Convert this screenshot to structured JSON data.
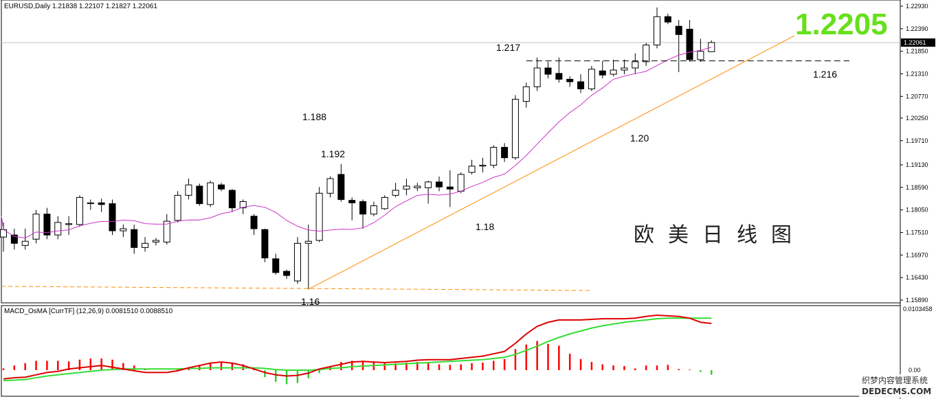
{
  "header": {
    "symbol": "EURUSD,Daily",
    "ohlc": "1.21838 1.22107 1.21827 1.22061"
  },
  "price_axis": {
    "ticks": [
      "1.22930",
      "1.22390",
      "1.21850",
      "1.21310",
      "1.20770",
      "1.20250",
      "1.19710",
      "1.19130",
      "1.18590",
      "1.18050",
      "1.17510",
      "1.16970",
      "1.16430",
      "1.15890"
    ],
    "current_price_label": "1.22061"
  },
  "annotations": {
    "big_price": "1.2205",
    "level_1217": "1.217",
    "level_1216": "1.216",
    "level_1188": "1.188",
    "level_1192": "1.192",
    "level_118": "1.18",
    "level_120": "1.20",
    "level_116": "1.16",
    "chinese_title": "欧美日线图"
  },
  "macd_panel": {
    "title": "MACD_OsMA [CurrTF] (12,26,9) 0.0081510 0.0088510",
    "top_tick": "0.0103458",
    "zero_tick": "0.00",
    "bottom_tick": "-0.0057..."
  },
  "watermark": {
    "line1": "织梦内容管理系统",
    "line2": "DEDECMS.COM"
  },
  "colors": {
    "bull_body": "#ffffff",
    "bear_body": "#000000",
    "ma_line": "#cc33cc",
    "trend_line": "#ff8c00",
    "histogram": "#ff0000",
    "histogram_negative": "#33cc33",
    "macd_fast": "#dd0000",
    "macd_signal": "#33dd33",
    "big_price": "#66e01a"
  },
  "chart_data": [
    {
      "type": "candlestick",
      "title": "EURUSD,Daily",
      "ylim": [
        1.1589,
        1.2293
      ],
      "candles": [
        {
          "o": 1.174,
          "h": 1.1775,
          "l": 1.1705,
          "c": 1.1758
        },
        {
          "o": 1.1745,
          "h": 1.176,
          "l": 1.171,
          "c": 1.1725
        },
        {
          "o": 1.172,
          "h": 1.176,
          "l": 1.171,
          "c": 1.173
        },
        {
          "o": 1.1735,
          "h": 1.1805,
          "l": 1.1725,
          "c": 1.1795
        },
        {
          "o": 1.1795,
          "h": 1.181,
          "l": 1.1735,
          "c": 1.1745
        },
        {
          "o": 1.1745,
          "h": 1.179,
          "l": 1.1735,
          "c": 1.1775
        },
        {
          "o": 1.177,
          "h": 1.179,
          "l": 1.1745,
          "c": 1.1772
        },
        {
          "o": 1.177,
          "h": 1.184,
          "l": 1.1765,
          "c": 1.1835
        },
        {
          "o": 1.182,
          "h": 1.183,
          "l": 1.1805,
          "c": 1.1822
        },
        {
          "o": 1.1822,
          "h": 1.1832,
          "l": 1.18,
          "c": 1.1818
        },
        {
          "o": 1.182,
          "h": 1.183,
          "l": 1.1745,
          "c": 1.1755
        },
        {
          "o": 1.1755,
          "h": 1.177,
          "l": 1.174,
          "c": 1.176
        },
        {
          "o": 1.1758,
          "h": 1.177,
          "l": 1.17,
          "c": 1.1715
        },
        {
          "o": 1.1715,
          "h": 1.174,
          "l": 1.1705,
          "c": 1.1725
        },
        {
          "o": 1.1728,
          "h": 1.1738,
          "l": 1.172,
          "c": 1.1732
        },
        {
          "o": 1.1728,
          "h": 1.1795,
          "l": 1.1722,
          "c": 1.1778
        },
        {
          "o": 1.178,
          "h": 1.185,
          "l": 1.1775,
          "c": 1.184
        },
        {
          "o": 1.184,
          "h": 1.188,
          "l": 1.183,
          "c": 1.1865
        },
        {
          "o": 1.1862,
          "h": 1.1868,
          "l": 1.1815,
          "c": 1.182
        },
        {
          "o": 1.1818,
          "h": 1.1875,
          "l": 1.1812,
          "c": 1.187
        },
        {
          "o": 1.1865,
          "h": 1.187,
          "l": 1.185,
          "c": 1.1855
        },
        {
          "o": 1.1852,
          "h": 1.1855,
          "l": 1.18,
          "c": 1.181
        },
        {
          "o": 1.181,
          "h": 1.183,
          "l": 1.1795,
          "c": 1.1825
        },
        {
          "o": 1.179,
          "h": 1.1795,
          "l": 1.1745,
          "c": 1.176
        },
        {
          "o": 1.1758,
          "h": 1.176,
          "l": 1.168,
          "c": 1.169
        },
        {
          "o": 1.1688,
          "h": 1.17,
          "l": 1.165,
          "c": 1.1655
        },
        {
          "o": 1.1658,
          "h": 1.1662,
          "l": 1.164,
          "c": 1.1648
        },
        {
          "o": 1.1635,
          "h": 1.174,
          "l": 1.1628,
          "c": 1.1725
        },
        {
          "o": 1.1725,
          "h": 1.177,
          "l": 1.1615,
          "c": 1.173
        },
        {
          "o": 1.1732,
          "h": 1.186,
          "l": 1.1728,
          "c": 1.1845
        },
        {
          "o": 1.1845,
          "h": 1.1885,
          "l": 1.1835,
          "c": 1.188
        },
        {
          "o": 1.189,
          "h": 1.1915,
          "l": 1.1825,
          "c": 1.183
        },
        {
          "o": 1.1828,
          "h": 1.1835,
          "l": 1.178,
          "c": 1.1822
        },
        {
          "o": 1.1825,
          "h": 1.183,
          "l": 1.176,
          "c": 1.1795
        },
        {
          "o": 1.1795,
          "h": 1.1825,
          "l": 1.179,
          "c": 1.1815
        },
        {
          "o": 1.1808,
          "h": 1.184,
          "l": 1.1805,
          "c": 1.1835
        },
        {
          "o": 1.184,
          "h": 1.187,
          "l": 1.1835,
          "c": 1.1852
        },
        {
          "o": 1.1855,
          "h": 1.188,
          "l": 1.184,
          "c": 1.1862
        },
        {
          "o": 1.1858,
          "h": 1.187,
          "l": 1.185,
          "c": 1.1862
        },
        {
          "o": 1.1858,
          "h": 1.1875,
          "l": 1.182,
          "c": 1.1872
        },
        {
          "o": 1.1872,
          "h": 1.1885,
          "l": 1.185,
          "c": 1.186
        },
        {
          "o": 1.186,
          "h": 1.19,
          "l": 1.1812,
          "c": 1.1855
        },
        {
          "o": 1.185,
          "h": 1.1895,
          "l": 1.1845,
          "c": 1.189
        },
        {
          "o": 1.1895,
          "h": 1.1925,
          "l": 1.189,
          "c": 1.191
        },
        {
          "o": 1.191,
          "h": 1.193,
          "l": 1.1895,
          "c": 1.1912
        },
        {
          "o": 1.1912,
          "h": 1.196,
          "l": 1.1905,
          "c": 1.1955
        },
        {
          "o": 1.1955,
          "h": 1.1965,
          "l": 1.192,
          "c": 1.193
        },
        {
          "o": 1.193,
          "h": 1.208,
          "l": 1.1925,
          "c": 1.207
        },
        {
          "o": 1.2065,
          "h": 1.211,
          "l": 1.205,
          "c": 1.21
        },
        {
          "o": 1.21,
          "h": 1.217,
          "l": 1.209,
          "c": 1.2145
        },
        {
          "o": 1.2145,
          "h": 1.216,
          "l": 1.212,
          "c": 1.213
        },
        {
          "o": 1.2132,
          "h": 1.217,
          "l": 1.211,
          "c": 1.2118
        },
        {
          "o": 1.2118,
          "h": 1.2125,
          "l": 1.21,
          "c": 1.2112
        },
        {
          "o": 1.2112,
          "h": 1.213,
          "l": 1.2085,
          "c": 1.2095
        },
        {
          "o": 1.2095,
          "h": 1.215,
          "l": 1.209,
          "c": 1.2142
        },
        {
          "o": 1.2138,
          "h": 1.2162,
          "l": 1.212,
          "c": 1.2128
        },
        {
          "o": 1.213,
          "h": 1.2165,
          "l": 1.2125,
          "c": 1.214
        },
        {
          "o": 1.214,
          "h": 1.2165,
          "l": 1.213,
          "c": 1.2145
        },
        {
          "o": 1.2145,
          "h": 1.218,
          "l": 1.213,
          "c": 1.216
        },
        {
          "o": 1.216,
          "h": 1.2205,
          "l": 1.215,
          "c": 1.22
        },
        {
          "o": 1.22,
          "h": 1.229,
          "l": 1.2192,
          "c": 1.2268
        },
        {
          "o": 1.2268,
          "h": 1.2275,
          "l": 1.225,
          "c": 1.2255
        },
        {
          "o": 1.2245,
          "h": 1.226,
          "l": 1.2135,
          "c": 1.2225
        },
        {
          "o": 1.2238,
          "h": 1.226,
          "l": 1.216,
          "c": 1.2165
        },
        {
          "o": 1.2165,
          "h": 1.2215,
          "l": 1.216,
          "c": 1.2185
        },
        {
          "o": 1.2184,
          "h": 1.2211,
          "l": 1.2183,
          "c": 1.2206
        }
      ]
    },
    {
      "type": "bar",
      "title": "MACD_OsMA [CurrTF] (12,26,9) 0.0081510 0.0088510",
      "ylim": [
        -0.0057,
        0.0103458
      ],
      "series": [
        {
          "name": "OsMA",
          "values": [
            0.0003,
            0.0008,
            0.0012,
            0.0016,
            0.0016,
            0.0016,
            0.0015,
            0.0018,
            0.002,
            0.002,
            0.0018,
            0.0012,
            0.0008,
            0.0002,
            0.0,
            0.0,
            0.0001,
            0.0003,
            0.0009,
            0.0012,
            0.0013,
            0.0013,
            0.001,
            0.0004,
            -0.0012,
            -0.002,
            -0.0024,
            -0.0022,
            -0.0014,
            -0.0005,
            0.0007,
            0.0014,
            0.0016,
            0.0016,
            0.0014,
            0.0012,
            0.0012,
            0.0013,
            0.0014,
            0.0012,
            0.001,
            0.0009,
            0.001,
            0.0012,
            0.0013,
            0.0016,
            0.0019,
            0.0036,
            0.0044,
            0.005,
            0.0045,
            0.0042,
            0.0028,
            0.0019,
            0.0014,
            0.001,
            0.0008,
            0.0007,
            0.0003,
            0.0008,
            0.0008,
            0.0009,
            0.0002,
            0.0001,
            -0.0003,
            -0.0008
          ]
        },
        {
          "name": "MACD",
          "type": "line",
          "values": [
            -0.0015,
            -0.0013,
            -0.0012,
            -0.0008,
            -0.0004,
            -0.0002,
            0.0002,
            0.0004,
            0.0006,
            0.0008,
            0.0005,
            0.0002,
            -0.0001,
            -0.0004,
            -0.0004,
            -0.0004,
            -0.0001,
            0.0004,
            0.0008,
            0.0012,
            0.0014,
            0.0012,
            0.0008,
            0.0002,
            -0.0004,
            -0.0008,
            -0.001,
            -0.0009,
            -0.0005,
            0.0002,
            0.0006,
            0.001,
            0.0014,
            0.0015,
            0.0014,
            0.0013,
            0.0014,
            0.0015,
            0.0017,
            0.0018,
            0.0018,
            0.0018,
            0.002,
            0.0022,
            0.0024,
            0.0028,
            0.0032,
            0.0046,
            0.0062,
            0.0075,
            0.0082,
            0.0086,
            0.0086,
            0.0086,
            0.0087,
            0.0088,
            0.0088,
            0.0088,
            0.0089,
            0.0092,
            0.0094,
            0.0093,
            0.0092,
            0.0089,
            0.0082,
            0.008
          ]
        },
        {
          "name": "Signal",
          "type": "line",
          "values": [
            -0.0018,
            -0.0017,
            -0.0016,
            -0.0013,
            -0.001,
            -0.0008,
            -0.0006,
            -0.0004,
            -0.0002,
            0.0,
            0.0001,
            0.0002,
            0.0002,
            0.0002,
            0.0002,
            0.0002,
            0.0002,
            0.0003,
            0.0003,
            0.0004,
            0.0004,
            0.0004,
            0.0004,
            0.0004,
            0.0003,
            0.0001,
            0.0,
            0.0,
            0.0,
            0.0001,
            0.0003,
            0.0004,
            0.0006,
            0.0007,
            0.0008,
            0.0009,
            0.001,
            0.0011,
            0.0012,
            0.0013,
            0.0014,
            0.0015,
            0.0016,
            0.0017,
            0.0018,
            0.002,
            0.0022,
            0.0027,
            0.0034,
            0.0041,
            0.0049,
            0.0056,
            0.0062,
            0.0067,
            0.0072,
            0.0076,
            0.0079,
            0.0082,
            0.0084,
            0.0086,
            0.0088,
            0.0089,
            0.0089,
            0.0089,
            0.0089,
            0.0089
          ]
        }
      ]
    }
  ]
}
